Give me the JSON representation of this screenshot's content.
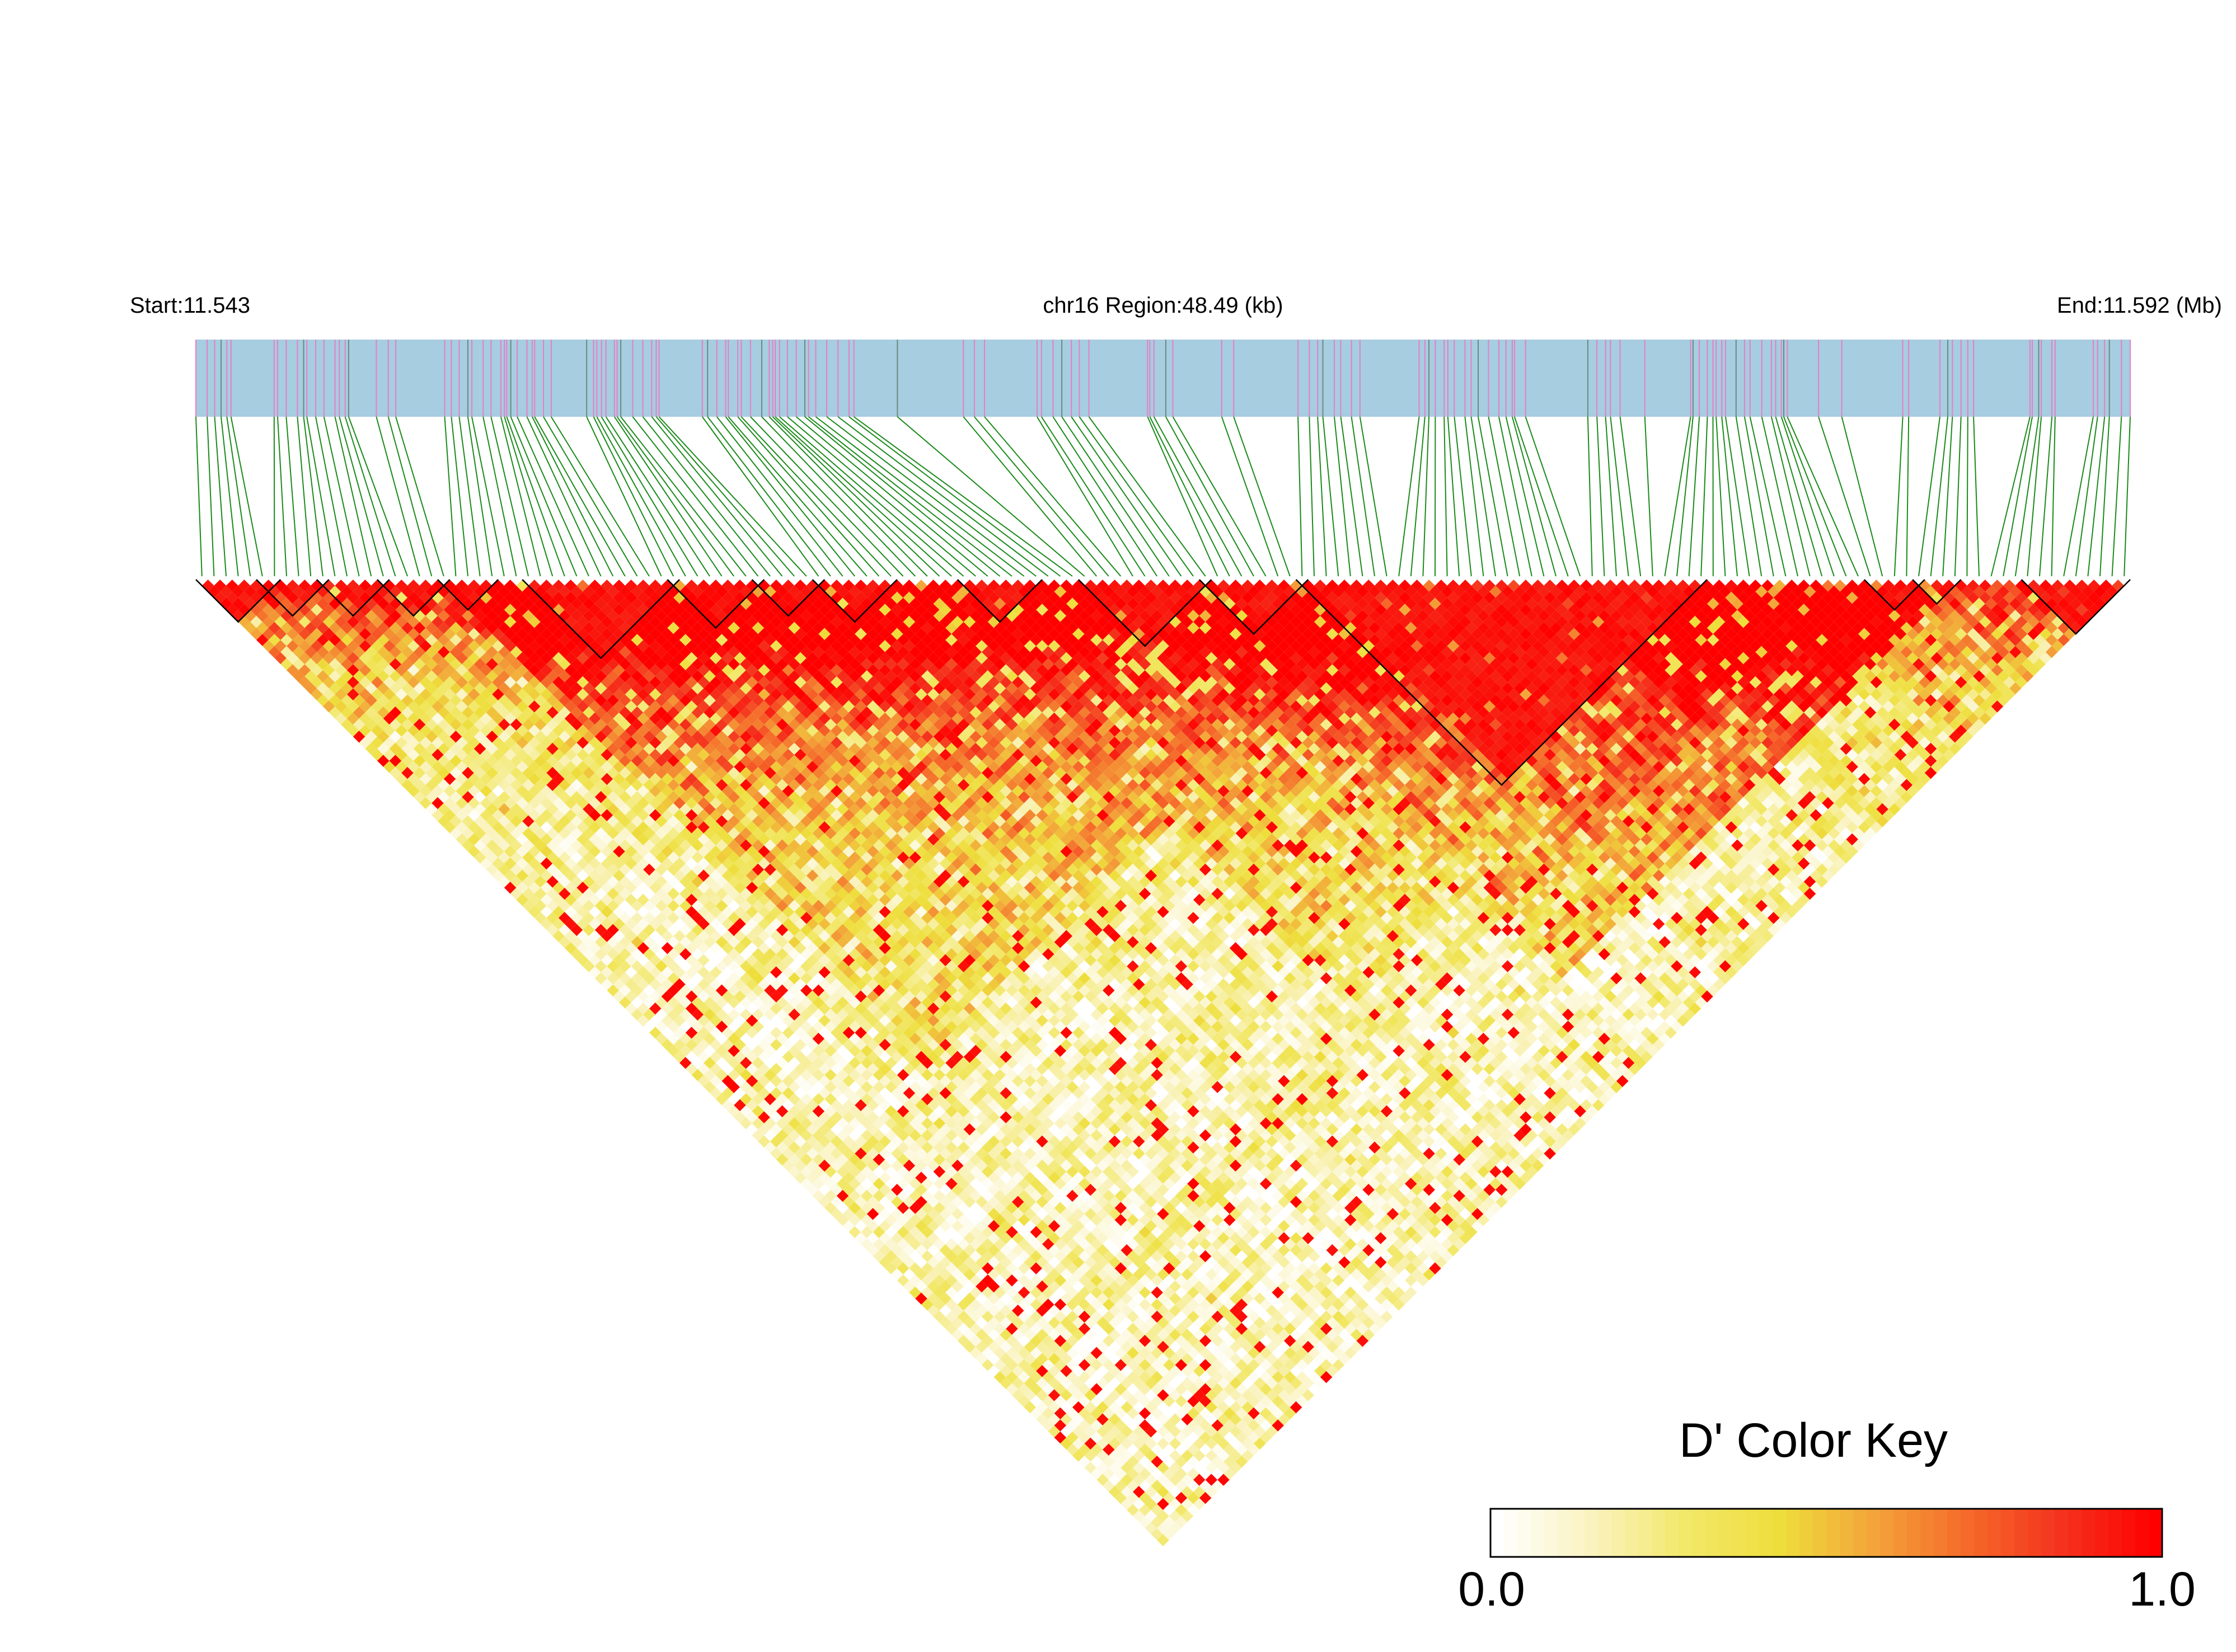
{
  "header": {
    "start_label": "Start:11.543",
    "region_label": "chr16 Region:48.49 (kb)",
    "end_label": "End:11.592 (Mb)"
  },
  "legend": {
    "title": "D' Color Key",
    "min_label": "0.0",
    "max_label": "1.0"
  },
  "colors": {
    "track": "#a6cde0",
    "snp_tick_pink": "#e57fc6",
    "snp_tick_gray": "#6a8a80",
    "connector": "#1a8a1a",
    "scale": [
      "#ffffff",
      "#faf3c0",
      "#f2e86a",
      "#eede3c",
      "#f3a43a",
      "#f56a2a",
      "#f4321e",
      "#ff0000"
    ]
  },
  "chart_data": {
    "type": "heatmap",
    "title": "D' Color Key",
    "chromosome": "chr16",
    "region_start_mb": 11.543,
    "region_end_mb": 11.592,
    "region_size_kb": 48.49,
    "n_snps": 160,
    "value_range": [
      0.0,
      1.0
    ],
    "ld_blocks": [
      [
        0,
        6
      ],
      [
        5,
        10
      ],
      [
        10,
        15
      ],
      [
        15,
        20
      ],
      [
        20,
        24
      ],
      [
        27,
        39
      ],
      [
        39,
        46
      ],
      [
        46,
        51
      ],
      [
        51,
        57
      ],
      [
        63,
        69
      ],
      [
        73,
        83
      ],
      [
        83,
        91
      ],
      [
        91,
        124
      ],
      [
        138,
        142
      ],
      [
        142,
        145
      ],
      [
        151,
        159
      ]
    ]
  }
}
